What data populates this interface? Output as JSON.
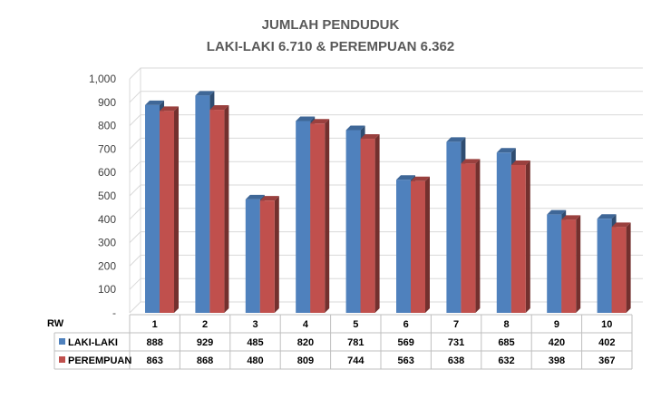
{
  "chart_data": {
    "type": "bar",
    "title_line1": "JUMLAH PENDUDUK",
    "title_line2": "LAKI-LAKI 6.710 & PEREMPUAN 6.362",
    "xlabel": "RW",
    "categories": [
      "1",
      "2",
      "3",
      "4",
      "5",
      "6",
      "7",
      "8",
      "9",
      "10"
    ],
    "series": [
      {
        "name": "LAKI-LAKI",
        "color": "#4f81bd",
        "values": [
          888,
          929,
          485,
          820,
          781,
          569,
          731,
          685,
          420,
          402
        ]
      },
      {
        "name": "PEREMPUAN",
        "color": "#c0504d",
        "values": [
          863,
          868,
          480,
          809,
          744,
          563,
          638,
          632,
          398,
          367
        ]
      }
    ],
    "ylim": [
      0,
      1000
    ],
    "yticks": [
      "-",
      "100",
      "200",
      "300",
      "400",
      "500",
      "600",
      "700",
      "800",
      "900",
      "1,000"
    ],
    "grid": true,
    "style": "3d-column-with-data-table"
  }
}
